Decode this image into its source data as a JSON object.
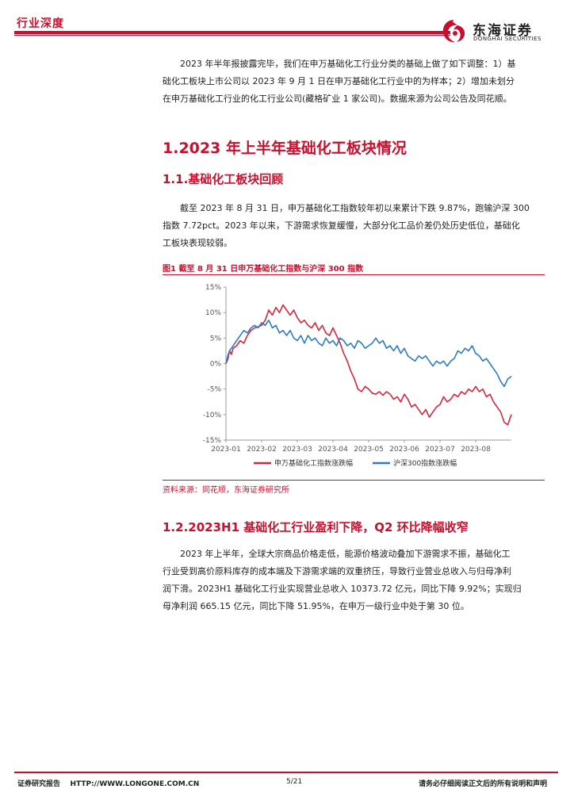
{
  "header": {
    "tag": "行业深度",
    "logo_cn": "东海证券",
    "logo_en": "DONGHAI SECURITIES"
  },
  "intro": {
    "line1": "2023 年半年报披露完毕，我们在申万基础化工行业分类的基础上做了如下调整：1）基",
    "line2": "础化工板块上市公司以 2023 年 9 月 1 日在申万基础化工行业中的为样本；2）增加未划分",
    "line3": "在申万基础化工行业的化工行业公司(藏格矿业 1 家公司)。数据来源为公司公告及同花顺。"
  },
  "section1": {
    "title": "1.2023 年上半年基础化工板块情况"
  },
  "section11": {
    "title": "1.1.基础化工板块回顾",
    "line1": "截至 2023 年 8 月 31 日，申万基础化工指数较年初以来累计下跌 9.87%，跑输沪深 300",
    "line2": "指数 7.72pct。2023 年以来，下游需求恢复缓慢，大部分化工品价差仍处历史低位，基础化",
    "line3": "工板块表现较弱。"
  },
  "figure1": {
    "title": "图1  截至 8 月 31 日申万基础化工指数与沪深 300 指数",
    "source": "资料来源：同花顺，东海证券研究所"
  },
  "section12": {
    "title": "1.2.2023H1 基础化工行业盈利下降，Q2 环比降幅收窄",
    "line1": "2023 年上半年，全球大宗商品价格走低，能源价格波动叠加下游需求不振，基础化工",
    "line2": "行业受到高价原料库存的成本端及下游需求端的双重挤压，导致行业营业总收入与归母净利",
    "line3": "润下滑。2023H1 基础化工行业实现营业总收入 10373.72 亿元，同比下降 9.92%；实现归",
    "line4": "母净利润 665.15 亿元，同比下降 51.95%，在申万一级行业中处于第 30 位。"
  },
  "footer": {
    "left": "证券研究报告    HTTP://WWW.LONGONE.COM.CN",
    "page": "5/21",
    "right": "请务必仔细阅读正文后的所有说明和声明"
  },
  "colors": {
    "accent": "#c8102e",
    "series_red": "#d7263d",
    "series_blue": "#2e7bc4"
  },
  "chart_data": {
    "type": "line",
    "title": "",
    "ylim": [
      -15,
      15
    ],
    "yticks": [
      "15%",
      "10%",
      "5%",
      "0%",
      "-5%",
      "-10%",
      "-15%"
    ],
    "ytick_values": [
      15,
      10,
      5,
      0,
      -5,
      -10,
      -15
    ],
    "xticks": [
      "2023-01",
      "2023-02",
      "2023-03",
      "2023-04",
      "2023-05",
      "2023-06",
      "2023-07",
      "2023-08"
    ],
    "x_start_month": 0,
    "x_end_month": 8,
    "legend_position": "bottom",
    "series": [
      {
        "name": "申万基础化工指数涨跌幅",
        "color": "#d7263d",
        "x": [
          0,
          0.05,
          0.1,
          0.15,
          0.2,
          0.3,
          0.4,
          0.5,
          0.6,
          0.7,
          0.8,
          0.9,
          1.0,
          1.1,
          1.2,
          1.3,
          1.4,
          1.5,
          1.6,
          1.7,
          1.8,
          1.9,
          2.0,
          2.1,
          2.2,
          2.3,
          2.4,
          2.5,
          2.6,
          2.7,
          2.8,
          2.9,
          3.0,
          3.1,
          3.2,
          3.3,
          3.4,
          3.5,
          3.6,
          3.7,
          3.8,
          3.9,
          4.0,
          4.1,
          4.2,
          4.3,
          4.4,
          4.5,
          4.6,
          4.7,
          4.8,
          4.9,
          5.0,
          5.1,
          5.2,
          5.3,
          5.4,
          5.5,
          5.6,
          5.7,
          5.8,
          5.9,
          6.0,
          6.1,
          6.2,
          6.3,
          6.4,
          6.5,
          6.6,
          6.7,
          6.8,
          6.9,
          7.0,
          7.1,
          7.2,
          7.3,
          7.4,
          7.5,
          7.6,
          7.7,
          7.8,
          7.9,
          8.0
        ],
        "values": [
          0,
          0.8,
          2.5,
          1.8,
          3.0,
          3.5,
          4.5,
          4.0,
          5.5,
          6.5,
          7.0,
          7.2,
          7.5,
          8.5,
          10.5,
          9.5,
          11.0,
          10.0,
          11.5,
          10.5,
          9.5,
          10.5,
          9.0,
          8.0,
          8.5,
          7.5,
          7.0,
          8.0,
          6.5,
          7.5,
          6.0,
          5.5,
          7.0,
          5.5,
          4.0,
          2.0,
          0.5,
          -1.5,
          -3.0,
          -5.0,
          -5.5,
          -4.5,
          -5.0,
          -5.8,
          -6.0,
          -5.5,
          -6.2,
          -5.5,
          -6.0,
          -7.0,
          -6.5,
          -7.5,
          -6.0,
          -7.0,
          -8.5,
          -8.0,
          -9.0,
          -10.0,
          -9.0,
          -10.5,
          -9.5,
          -8.5,
          -8.0,
          -6.5,
          -7.5,
          -7.0,
          -6.0,
          -6.5,
          -5.5,
          -6.0,
          -5.0,
          -5.5,
          -4.5,
          -5.5,
          -5.0,
          -6.5,
          -6.0,
          -7.5,
          -8.5,
          -9.5,
          -11.5,
          -12.0,
          -10.0
        ]
      },
      {
        "name": "沪深300指数涨跌幅",
        "color": "#2e7bc4",
        "x": [
          0,
          0.05,
          0.1,
          0.15,
          0.2,
          0.3,
          0.4,
          0.5,
          0.6,
          0.7,
          0.8,
          0.9,
          1.0,
          1.1,
          1.2,
          1.3,
          1.4,
          1.5,
          1.6,
          1.7,
          1.8,
          1.9,
          2.0,
          2.1,
          2.2,
          2.3,
          2.4,
          2.5,
          2.6,
          2.7,
          2.8,
          2.9,
          3.0,
          3.1,
          3.2,
          3.3,
          3.4,
          3.5,
          3.6,
          3.7,
          3.8,
          3.9,
          4.0,
          4.1,
          4.2,
          4.3,
          4.4,
          4.5,
          4.6,
          4.7,
          4.8,
          4.9,
          5.0,
          5.1,
          5.2,
          5.3,
          5.4,
          5.5,
          5.6,
          5.7,
          5.8,
          5.9,
          6.0,
          6.1,
          6.2,
          6.3,
          6.4,
          6.5,
          6.6,
          6.7,
          6.8,
          6.9,
          7.0,
          7.1,
          7.2,
          7.3,
          7.4,
          7.5,
          7.6,
          7.7,
          7.8,
          7.9,
          8.0
        ],
        "values": [
          0,
          1.5,
          2.5,
          3.0,
          3.5,
          4.5,
          5.5,
          6.5,
          6.0,
          7.0,
          7.5,
          7.0,
          8.0,
          7.5,
          8.5,
          7.0,
          7.5,
          6.0,
          6.5,
          5.5,
          6.5,
          5.0,
          4.5,
          5.5,
          4.0,
          5.5,
          4.5,
          5.0,
          4.0,
          3.5,
          5.0,
          4.0,
          4.5,
          3.5,
          5.0,
          4.5,
          3.5,
          4.0,
          3.0,
          4.5,
          4.0,
          3.0,
          3.5,
          4.0,
          5.0,
          4.0,
          4.5,
          3.0,
          3.5,
          2.5,
          3.5,
          2.0,
          3.0,
          1.5,
          1.0,
          0.5,
          1.5,
          1.0,
          1.5,
          0.5,
          -0.5,
          0.5,
          0,
          0.5,
          -0.5,
          0.5,
          1.0,
          2.5,
          2.0,
          3.0,
          2.5,
          3.5,
          2.0,
          1.5,
          0.5,
          1.0,
          0,
          -1.0,
          -2.0,
          -3.5,
          -4.5,
          -3.0,
          -2.5
        ]
      }
    ]
  }
}
